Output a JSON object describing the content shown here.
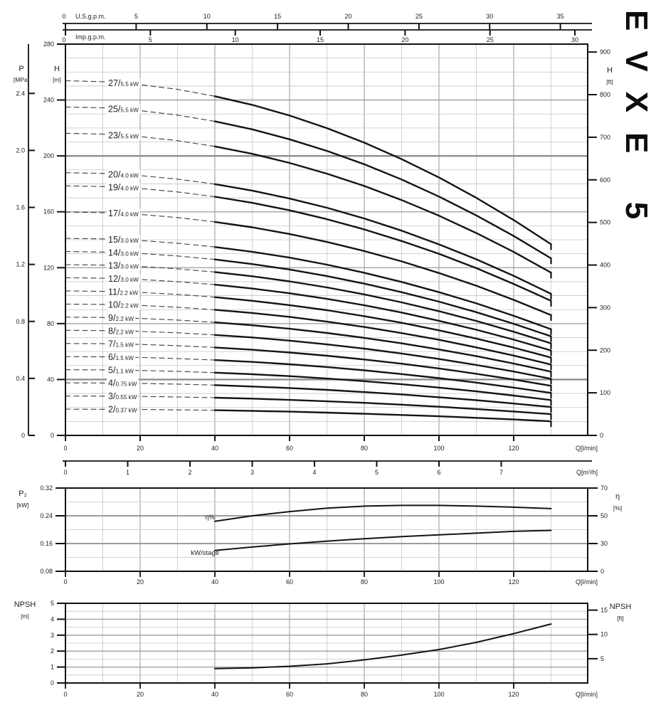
{
  "page_title": "EVXE 5",
  "colors": {
    "curve": "#141414",
    "dashed": "#3d3d3d",
    "grid_minor": "#c6c6c6",
    "grid_major": "#a8a8a8",
    "grid_emph": "#8f8f8f",
    "axis": "#111111"
  },
  "chart_data": [
    {
      "id": "head_curves",
      "type": "line",
      "title": "EVXE 5 head curves",
      "us_gpm_axis": {
        "label": "U.S.g.p.m.",
        "ticks": [
          "0",
          "5",
          "10",
          "15",
          "20",
          "25",
          "30",
          "35"
        ]
      },
      "imp_gpm_axis": {
        "label": "Imp.g.p.m.",
        "ticks": [
          "0",
          "5",
          "10",
          "15",
          "20",
          "25",
          "30"
        ]
      },
      "p_axis": {
        "name": "P",
        "unit": "[MPa]",
        "ticks": [
          "2.4",
          "2.0",
          "1.6",
          "1.2",
          "0.8",
          "0.4",
          "0"
        ]
      },
      "h_axis_m": {
        "name": "H",
        "unit": "[m]",
        "ticks": [
          "280",
          "240",
          "200",
          "160",
          "120",
          "80",
          "40",
          "0"
        ],
        "range": [
          0,
          280
        ]
      },
      "h_axis_ft": {
        "name": "H",
        "unit": "[ft]",
        "ticks": [
          "900",
          "800",
          "700",
          "600",
          "500",
          "400",
          "300",
          "200",
          "100",
          "0"
        ]
      },
      "q_axis_lmin": {
        "label": "Q[l/min]",
        "ticks": [
          "0",
          "20",
          "40",
          "60",
          "80",
          "100",
          "120"
        ],
        "range": [
          0,
          140
        ]
      },
      "q_axis_m3h": {
        "label": "Q[m³/h]",
        "ticks": [
          "0",
          "1",
          "2",
          "3",
          "4",
          "5",
          "6",
          "7"
        ]
      },
      "emphasized_h_lines": [
        40,
        200
      ],
      "dashed_below_q_lmin": 40,
      "q_lmin": [
        0,
        10,
        20,
        30,
        40,
        50,
        60,
        70,
        80,
        90,
        100,
        110,
        120,
        130
      ],
      "curves": [
        {
          "stages": "27",
          "power": "5.5 kW",
          "head_m": [
            253.8,
            253.1,
            251.0,
            247.6,
            242.7,
            236.5,
            228.9,
            219.9,
            209.5,
            197.7,
            184.6,
            170.0,
            154.1,
            136.8
          ]
        },
        {
          "stages": "25",
          "power": "5.5 kW",
          "head_m": [
            235.0,
            234.4,
            232.4,
            229.2,
            224.7,
            219.0,
            211.9,
            203.6,
            194.0,
            183.1,
            170.9,
            157.4,
            142.7,
            126.7
          ]
        },
        {
          "stages": "23",
          "power": "5.5 kW",
          "head_m": [
            216.2,
            215.6,
            213.8,
            210.9,
            206.8,
            201.5,
            195.0,
            187.3,
            178.5,
            168.4,
            157.2,
            144.8,
            131.3,
            116.5
          ]
        },
        {
          "stages": "20",
          "power": "4.0 kW",
          "head_m": [
            188.0,
            187.5,
            185.9,
            183.4,
            179.8,
            175.2,
            169.5,
            162.9,
            155.2,
            146.5,
            136.7,
            126.0,
            114.2,
            101.3
          ]
        },
        {
          "stages": "19",
          "power": "4.0 kW",
          "head_m": [
            178.6,
            178.1,
            176.7,
            174.2,
            170.8,
            166.4,
            161.1,
            154.7,
            147.4,
            139.1,
            129.9,
            119.7,
            108.4,
            96.3
          ]
        },
        {
          "stages": "17",
          "power": "4.0 kW",
          "head_m": [
            159.8,
            159.4,
            158.1,
            155.9,
            152.8,
            148.9,
            144.1,
            138.4,
            131.9,
            124.5,
            116.2,
            107.1,
            97.0,
            86.1
          ]
        },
        {
          "stages": "15",
          "power": "3.0 kW",
          "head_m": [
            141.0,
            140.6,
            139.5,
            137.5,
            134.8,
            131.4,
            127.2,
            122.2,
            116.4,
            109.8,
            102.5,
            94.5,
            85.6,
            76.0
          ]
        },
        {
          "stages": "14",
          "power": "3.0 kW",
          "head_m": [
            131.6,
            131.2,
            130.2,
            128.4,
            125.9,
            122.6,
            118.7,
            114.0,
            108.6,
            102.5,
            95.7,
            88.2,
            79.9,
            70.9
          ]
        },
        {
          "stages": "13",
          "power": "3.0 kW",
          "head_m": [
            122.2,
            121.9,
            120.9,
            119.2,
            116.9,
            113.9,
            110.2,
            105.9,
            100.9,
            95.2,
            88.9,
            81.9,
            74.2,
            65.9
          ]
        },
        {
          "stages": "12",
          "power": "3.0 kW",
          "head_m": [
            112.8,
            112.5,
            111.6,
            110.0,
            107.9,
            105.1,
            101.7,
            97.7,
            93.1,
            87.9,
            82.0,
            75.6,
            68.5,
            60.8
          ]
        },
        {
          "stages": "11",
          "power": "2.2 kW",
          "head_m": [
            103.4,
            103.1,
            102.3,
            100.9,
            98.9,
            96.3,
            93.2,
            89.6,
            85.3,
            80.6,
            75.2,
            69.3,
            62.8,
            55.7
          ]
        },
        {
          "stages": "10",
          "power": "2.2 kW",
          "head_m": [
            94.0,
            93.7,
            93.0,
            91.7,
            89.9,
            87.6,
            84.8,
            81.4,
            77.6,
            73.2,
            68.4,
            63.0,
            57.1,
            50.7
          ]
        },
        {
          "stages": "9",
          "power": "2.2 kW",
          "head_m": [
            84.6,
            84.4,
            83.7,
            82.5,
            80.9,
            78.8,
            76.3,
            73.3,
            69.8,
            65.9,
            61.5,
            56.7,
            51.4,
            45.6
          ]
        },
        {
          "stages": "8",
          "power": "2.2 kW",
          "head_m": [
            75.2,
            75.0,
            74.4,
            73.4,
            71.9,
            70.1,
            67.8,
            65.1,
            62.1,
            58.6,
            54.7,
            50.4,
            45.7,
            40.5
          ]
        },
        {
          "stages": "7",
          "power": "1.5 kW",
          "head_m": [
            65.8,
            65.6,
            65.1,
            64.2,
            62.9,
            61.3,
            59.3,
            57.0,
            54.3,
            51.3,
            47.9,
            44.1,
            40.0,
            35.5
          ]
        },
        {
          "stages": "6",
          "power": "1.5 kW",
          "head_m": [
            56.4,
            56.2,
            55.8,
            55.0,
            53.9,
            52.6,
            50.9,
            48.9,
            46.6,
            43.9,
            41.0,
            37.8,
            34.2,
            30.4
          ]
        },
        {
          "stages": "5",
          "power": "1.1 kW",
          "head_m": [
            47.0,
            46.9,
            46.5,
            45.8,
            44.9,
            43.8,
            42.4,
            40.7,
            38.8,
            36.6,
            34.2,
            31.5,
            28.5,
            25.3
          ]
        },
        {
          "stages": "4",
          "power": "0.75 kW",
          "head_m": [
            37.6,
            37.5,
            37.2,
            36.7,
            36.0,
            35.0,
            33.9,
            32.6,
            31.0,
            29.3,
            27.3,
            25.2,
            22.8,
            20.3
          ]
        },
        {
          "stages": "3",
          "power": "0.55 kW",
          "head_m": [
            28.2,
            28.1,
            27.9,
            27.5,
            27.0,
            26.3,
            25.4,
            24.4,
            23.3,
            22.0,
            20.5,
            18.9,
            17.1,
            15.2
          ]
        },
        {
          "stages": "2",
          "power": "0.37 kW",
          "head_m": [
            18.8,
            18.7,
            18.6,
            18.3,
            18.0,
            17.5,
            17.0,
            16.3,
            15.5,
            14.6,
            13.7,
            12.6,
            11.4,
            10.1
          ]
        }
      ]
    },
    {
      "id": "power_efficiency",
      "type": "line",
      "p2_axis": {
        "name": "P₂",
        "unit": "[kW]",
        "ticks": [
          "0.32",
          "0.24",
          "0.16",
          "0.08"
        ],
        "range": [
          0.08,
          0.32
        ]
      },
      "eta_axis": {
        "name": "η",
        "unit": "[%]",
        "ticks": [
          "70",
          "50",
          "30",
          "0"
        ]
      },
      "q_axis_lmin": {
        "label": "Q[l/min]",
        "ticks": [
          "0",
          "20",
          "40",
          "60",
          "80",
          "100",
          "120"
        ]
      },
      "series": [
        {
          "name": "η%",
          "q_lmin": [
            40,
            50,
            60,
            70,
            80,
            90,
            100,
            110,
            120,
            130
          ],
          "eta_pct": [
            46,
            50,
            53,
            55.5,
            57,
            57.5,
            57.5,
            57,
            56.2,
            55.2
          ]
        },
        {
          "name": "kW/stage",
          "q_lmin": [
            40,
            50,
            60,
            70,
            80,
            90,
            100,
            110,
            120,
            130
          ],
          "kw": [
            0.14,
            0.15,
            0.159,
            0.167,
            0.174,
            0.18,
            0.185,
            0.19,
            0.195,
            0.198
          ]
        }
      ]
    },
    {
      "id": "npsh",
      "type": "line",
      "npsh_axis_m": {
        "name": "NPSH",
        "unit": "[m]",
        "ticks": [
          "5",
          "4",
          "3",
          "2",
          "1",
          "0"
        ],
        "range": [
          0,
          5
        ]
      },
      "npsh_axis_ft": {
        "name": "NPSH",
        "unit": "[ft]",
        "ticks": [
          "15",
          "10",
          "5"
        ]
      },
      "q_axis_lmin": {
        "label": "Q[l/min]",
        "ticks": [
          "0",
          "20",
          "40",
          "60",
          "80",
          "100",
          "120"
        ]
      },
      "series": [
        {
          "name": "NPSH",
          "q_lmin": [
            40,
            50,
            60,
            70,
            80,
            90,
            100,
            110,
            120,
            130
          ],
          "npsh_m": [
            0.9,
            0.95,
            1.05,
            1.2,
            1.45,
            1.75,
            2.1,
            2.55,
            3.1,
            3.7
          ]
        }
      ]
    }
  ]
}
